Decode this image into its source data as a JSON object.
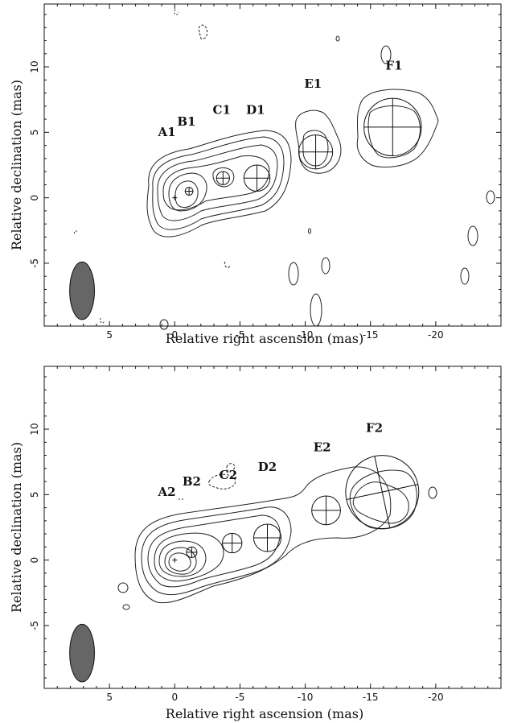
{
  "chart_data": [
    {
      "type": "contour",
      "xlabel": "Relative right ascension (mas)",
      "ylabel": "Relative declination (mas)",
      "xlim": [
        10,
        -25
      ],
      "ylim": [
        -9.8,
        14.8
      ],
      "xticks": [
        5,
        0,
        -5,
        -10,
        -15,
        -20
      ],
      "xtick_labels": [
        "5",
        "0",
        "-5",
        "-10",
        "-15",
        "-20"
      ],
      "yticks": [
        -5,
        0,
        5,
        10
      ],
      "ytick_labels": [
        "-5",
        "0",
        "5",
        "10"
      ],
      "components": [
        {
          "name": "A1",
          "x": 0,
          "y": 0,
          "label_x": 0.6,
          "label_y": 4.7
        },
        {
          "name": "B1",
          "x": -1.1,
          "y": 0.5,
          "label_x": -0.9,
          "label_y": 5.5
        },
        {
          "name": "C1",
          "x": -3.7,
          "y": 1.5,
          "label_x": -3.6,
          "label_y": 6.4
        },
        {
          "name": "D1",
          "x": -6.3,
          "y": 1.5,
          "label_x": -6.2,
          "label_y": 6.4
        },
        {
          "name": "E1",
          "x": -10.8,
          "y": 3.5,
          "label_x": -10.6,
          "label_y": 8.4
        },
        {
          "name": "F1",
          "x": -16.7,
          "y": 5.4,
          "label_x": -16.8,
          "label_y": 9.8
        }
      ],
      "beam": {
        "x": 7.1,
        "y": -7.1,
        "major_fwhm": 4.4,
        "minor_fwhm": 1.9,
        "pa_deg": 0
      }
    },
    {
      "type": "contour",
      "xlabel": "Relative right ascension (mas)",
      "ylabel": "Relative declination (mas)",
      "xlim": [
        10,
        -25
      ],
      "ylim": [
        -9.8,
        14.8
      ],
      "xticks": [
        5,
        0,
        -5,
        -10,
        -15,
        -20
      ],
      "xtick_labels": [
        "5",
        "0",
        "-5",
        "-10",
        "-15",
        "-20"
      ],
      "yticks": [
        -5,
        0,
        5,
        10
      ],
      "ytick_labels": [
        "-5",
        "0",
        "5",
        "10"
      ],
      "components": [
        {
          "name": "A2",
          "x": 0,
          "y": 0,
          "label_x": 0.6,
          "label_y": 4.9
        },
        {
          "name": "B2",
          "x": -1.3,
          "y": 0.6,
          "label_x": -1.3,
          "label_y": 5.7
        },
        {
          "name": "C2",
          "x": -4.4,
          "y": 1.3,
          "label_x": -4.1,
          "label_y": 6.2
        },
        {
          "name": "D2",
          "x": -7.1,
          "y": 1.7,
          "label_x": -7.1,
          "label_y": 6.8
        },
        {
          "name": "E2",
          "x": -11.6,
          "y": 3.8,
          "label_x": -11.3,
          "label_y": 8.3
        },
        {
          "name": "F2",
          "x": -15.9,
          "y": 5.2,
          "label_x": -15.3,
          "label_y": 9.8
        }
      ],
      "beam": {
        "x": 7.1,
        "y": -7.1,
        "major_fwhm": 4.4,
        "minor_fwhm": 1.9,
        "pa_deg": 0
      }
    }
  ]
}
